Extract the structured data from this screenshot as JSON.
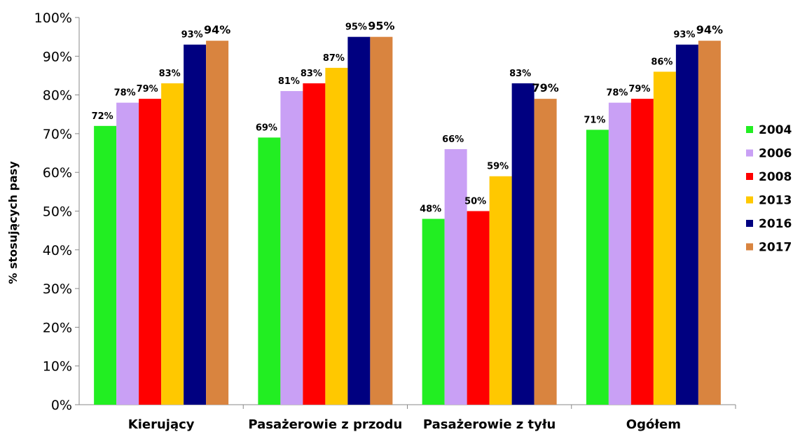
{
  "chart_data": {
    "type": "bar",
    "title": "",
    "xlabel": "",
    "ylabel": "% stosujących pasy",
    "ylim": [
      0,
      100
    ],
    "y_ticks": [
      "0%",
      "10%",
      "20%",
      "30%",
      "40%",
      "50%",
      "60%",
      "70%",
      "80%",
      "90%",
      "100%"
    ],
    "categories": [
      "Kierujący",
      "Pasażerowie z przodu",
      "Pasażerowie z tyłu",
      "Ogółem"
    ],
    "grid": false,
    "legend_position": "right",
    "series": [
      {
        "name": "2004",
        "color": "#22ee22",
        "values": [
          72,
          69,
          48,
          71
        ],
        "labels": [
          "72%",
          "69%",
          "48%",
          "71%"
        ]
      },
      {
        "name": "2006",
        "color": "#c9a0f5",
        "values": [
          78,
          81,
          66,
          78
        ],
        "labels": [
          "78%",
          "81%",
          "66%",
          "78%"
        ]
      },
      {
        "name": "2008",
        "color": "#ff0000",
        "values": [
          79,
          83,
          50,
          79
        ],
        "labels": [
          "79%",
          "83%",
          "50%",
          "79%"
        ]
      },
      {
        "name": "2013",
        "color": "#ffc800",
        "values": [
          83,
          87,
          59,
          86
        ],
        "labels": [
          "83%",
          "87%",
          "59%",
          "86%"
        ]
      },
      {
        "name": "2016",
        "color": "#000080",
        "values": [
          93,
          95,
          83,
          93
        ],
        "labels": [
          "93%",
          "95%",
          "83%",
          "93%"
        ]
      },
      {
        "name": "2017",
        "color": "#d9843f",
        "values": [
          94,
          95,
          79,
          94
        ],
        "labels": [
          "94%",
          "95%",
          "79%",
          "94%"
        ]
      }
    ]
  }
}
